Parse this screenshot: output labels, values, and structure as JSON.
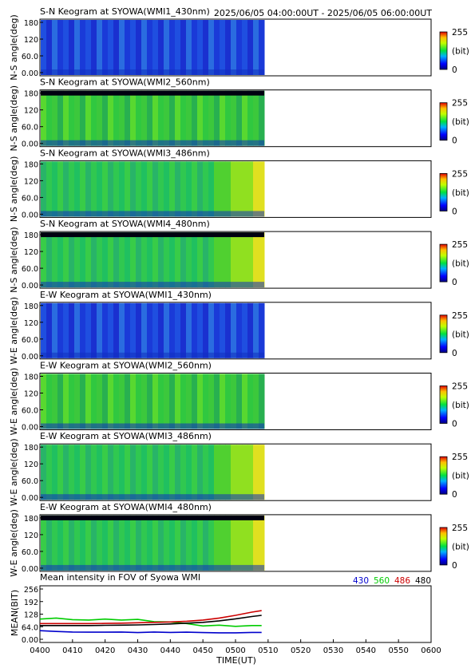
{
  "header": {
    "time_range": "2025/06/05 04:00:00UT - 2025/06/05 06:00:00UT"
  },
  "colorbar": {
    "max_label": "255",
    "unit_label": "(bit)",
    "min_label": "0"
  },
  "panels": [
    {
      "title": "S-N Keogram at SYOWA(WMI1_430nm)",
      "ylabel": "N-S angle(deg)",
      "ticks": [
        "180",
        "120",
        "60.0",
        "0.00"
      ],
      "base": "blue",
      "top_dark": false,
      "peak_right": false
    },
    {
      "title": "S-N Keogram at SYOWA(WMI2_560nm)",
      "ylabel": "N-S angle(deg)",
      "ticks": [
        "180",
        "120",
        "60.0",
        "0.00"
      ],
      "base": "green",
      "top_dark": true,
      "peak_right": false
    },
    {
      "title": "S-N Keogram at SYOWA(WMI3_486nm)",
      "ylabel": "N-S angle(deg)",
      "ticks": [
        "180",
        "120",
        "60.0",
        "0.00"
      ],
      "base": "teal",
      "top_dark": false,
      "peak_right": true
    },
    {
      "title": "S-N Keogram at SYOWA(WMI4_480nm)",
      "ylabel": "N-S angle(deg)",
      "ticks": [
        "180",
        "120",
        "60.0",
        "0.00"
      ],
      "base": "teal",
      "top_dark": true,
      "peak_right": true
    },
    {
      "title": "E-W Keogram at SYOWA(WMI1_430nm)",
      "ylabel": "W-E angle(deg)",
      "ticks": [
        "180",
        "120",
        "60.0",
        "0.00"
      ],
      "base": "blue",
      "top_dark": false,
      "peak_right": false
    },
    {
      "title": "E-W Keogram at SYOWA(WMI2_560nm)",
      "ylabel": "W-E angle(deg)",
      "ticks": [
        "180",
        "120",
        "60.0",
        "0.00"
      ],
      "base": "green",
      "top_dark": false,
      "peak_right": false
    },
    {
      "title": "E-W Keogram at SYOWA(WMI3_486nm)",
      "ylabel": "W-E angle(deg)",
      "ticks": [
        "180",
        "120",
        "60.0",
        "0.00"
      ],
      "base": "teal",
      "top_dark": false,
      "peak_right": true
    },
    {
      "title": "E-W Keogram at SYOWA(WMI4_480nm)",
      "ylabel": "W-E angle(deg)",
      "ticks": [
        "180",
        "120",
        "60.0",
        "0.00"
      ],
      "base": "teal",
      "top_dark": true,
      "peak_right": true
    }
  ],
  "chart_data": {
    "type": "line",
    "title": "Mean intensity in FOV of Syowa WMI",
    "xlabel": "TIME(UT)",
    "ylabel": "MEAN(BIT)",
    "y_ticks": [
      "256",
      "192",
      "128",
      "64.0",
      "0.00"
    ],
    "ylim": [
      0,
      256
    ],
    "x_ticks": [
      "0400",
      "0410",
      "0420",
      "0430",
      "0440",
      "0450",
      "0500",
      "0510",
      "0520",
      "0530",
      "0540",
      "0550",
      "0600"
    ],
    "xlim_minutes": [
      0,
      120
    ],
    "x": [
      0,
      5,
      10,
      15,
      20,
      25,
      30,
      35,
      40,
      45,
      50,
      55,
      60,
      65,
      68
    ],
    "series": [
      {
        "name": "430",
        "color": "#0000cc",
        "values": [
          44,
          40,
          37,
          36,
          36,
          37,
          34,
          37,
          35,
          36,
          34,
          33,
          33,
          35,
          35
        ]
      },
      {
        "name": "560",
        "color": "#00cc00",
        "values": [
          103,
          108,
          100,
          98,
          103,
          98,
          101,
          90,
          88,
          80,
          68,
          72,
          66,
          70,
          70
        ]
      },
      {
        "name": "486",
        "color": "#cc0000",
        "values": [
          80,
          80,
          80,
          80,
          81,
          82,
          84,
          86,
          88,
          92,
          98,
          108,
          122,
          138,
          146
        ]
      },
      {
        "name": "480",
        "color": "#000000",
        "values": [
          70,
          70,
          70,
          70,
          71,
          72,
          73,
          75,
          78,
          82,
          86,
          94,
          104,
          116,
          122
        ]
      }
    ]
  }
}
